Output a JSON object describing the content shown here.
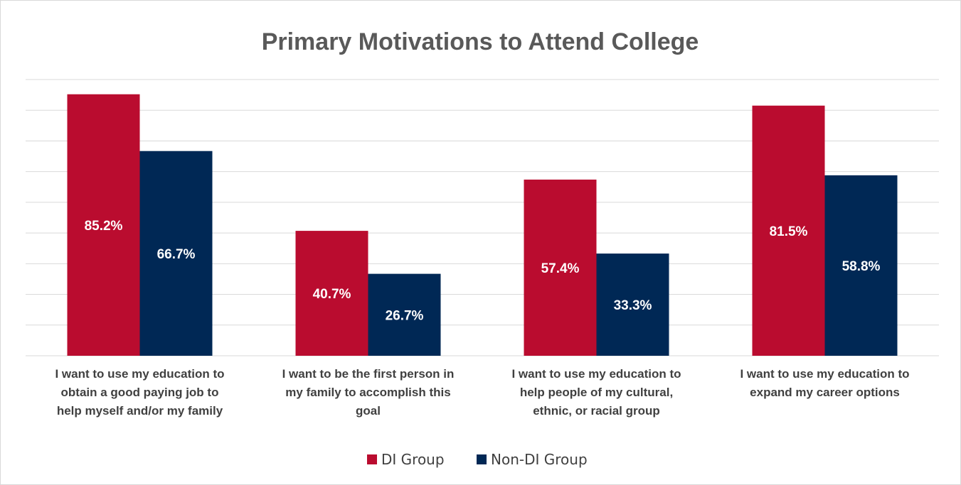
{
  "chart_data": {
    "type": "bar",
    "title": "Primary Motivations to Attend College",
    "categories": [
      [
        "I want to use my education to",
        "obtain a good paying job to",
        "help myself and/or my family"
      ],
      [
        "I want to be the first person in",
        "my family to accomplish this",
        "goal"
      ],
      [
        "I want to use my education to",
        "help people of my cultural,",
        "ethnic, or racial group"
      ],
      [
        "I want to use my education to",
        "expand my career options"
      ]
    ],
    "series": [
      {
        "name": "DI Group",
        "color": "#ba0c2f",
        "values": [
          85.2,
          40.7,
          57.4,
          81.5
        ],
        "labels": [
          "85.2%",
          "40.7%",
          "57.4%",
          "81.5%"
        ]
      },
      {
        "name": "Non-DI Group",
        "color": "#002855",
        "values": [
          66.7,
          26.7,
          33.3,
          58.8
        ],
        "labels": [
          "66.7%",
          "26.7%",
          "33.3%",
          "58.8%"
        ]
      }
    ],
    "ylim": [
      0,
      90
    ],
    "grid": true,
    "legend": "bottom"
  }
}
